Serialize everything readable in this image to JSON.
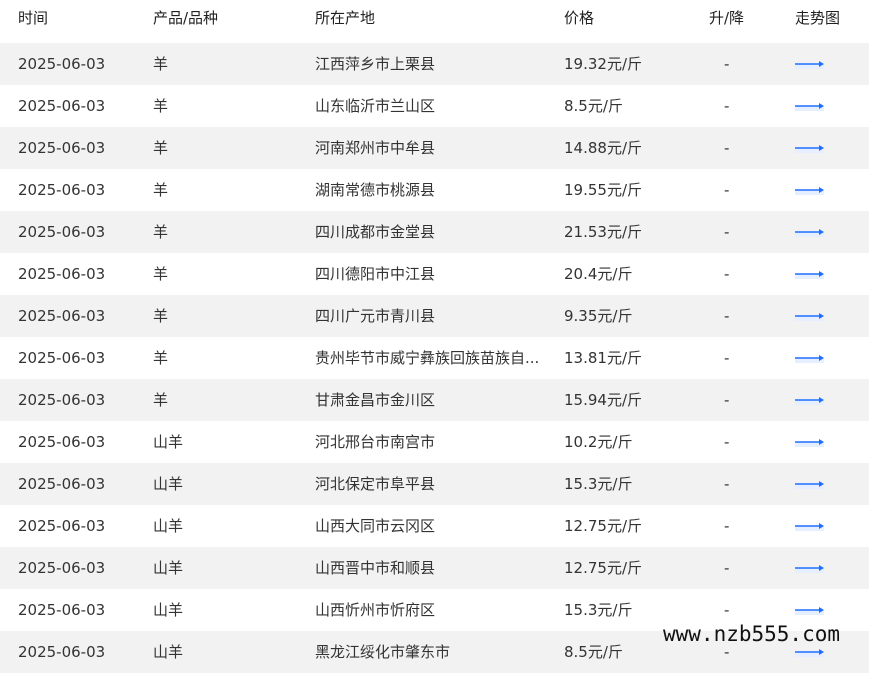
{
  "header": {
    "time": "时间",
    "product": "产品/品种",
    "location": "所在产地",
    "price": "价格",
    "change": "升/降",
    "trend": "走势图"
  },
  "rows": [
    {
      "date": "2025-06-03",
      "product": "羊",
      "location": "江西萍乡市上栗县",
      "price": "19.32元/斤",
      "change": "-"
    },
    {
      "date": "2025-06-03",
      "product": "羊",
      "location": "山东临沂市兰山区",
      "price": "8.5元/斤",
      "change": "-"
    },
    {
      "date": "2025-06-03",
      "product": "羊",
      "location": "河南郑州市中牟县",
      "price": "14.88元/斤",
      "change": "-"
    },
    {
      "date": "2025-06-03",
      "product": "羊",
      "location": "湖南常德市桃源县",
      "price": "19.55元/斤",
      "change": "-"
    },
    {
      "date": "2025-06-03",
      "product": "羊",
      "location": "四川成都市金堂县",
      "price": "21.53元/斤",
      "change": "-"
    },
    {
      "date": "2025-06-03",
      "product": "羊",
      "location": "四川德阳市中江县",
      "price": "20.4元/斤",
      "change": "-"
    },
    {
      "date": "2025-06-03",
      "product": "羊",
      "location": "四川广元市青川县",
      "price": "9.35元/斤",
      "change": "-"
    },
    {
      "date": "2025-06-03",
      "product": "羊",
      "location": "贵州毕节市威宁彝族回族苗族自...",
      "price": "13.81元/斤",
      "change": "-"
    },
    {
      "date": "2025-06-03",
      "product": "羊",
      "location": "甘肃金昌市金川区",
      "price": "15.94元/斤",
      "change": "-"
    },
    {
      "date": "2025-06-03",
      "product": "山羊",
      "location": "河北邢台市南宫市",
      "price": "10.2元/斤",
      "change": "-"
    },
    {
      "date": "2025-06-03",
      "product": "山羊",
      "location": "河北保定市阜平县",
      "price": "15.3元/斤",
      "change": "-"
    },
    {
      "date": "2025-06-03",
      "product": "山羊",
      "location": "山西大同市云冈区",
      "price": "12.75元/斤",
      "change": "-"
    },
    {
      "date": "2025-06-03",
      "product": "山羊",
      "location": "山西晋中市和顺县",
      "price": "12.75元/斤",
      "change": "-"
    },
    {
      "date": "2025-06-03",
      "product": "山羊",
      "location": "山西忻州市忻府区",
      "price": "15.3元/斤",
      "change": "-"
    },
    {
      "date": "2025-06-03",
      "product": "山羊",
      "location": "黑龙江绥化市肇东市",
      "price": "8.5元/斤",
      "change": "-"
    }
  ],
  "watermark": "www.nzb555.com",
  "colors": {
    "arrow": "#1e6fff",
    "stripe": "#f2f2f2"
  },
  "icons": {
    "trend": "arrow-right-icon"
  }
}
